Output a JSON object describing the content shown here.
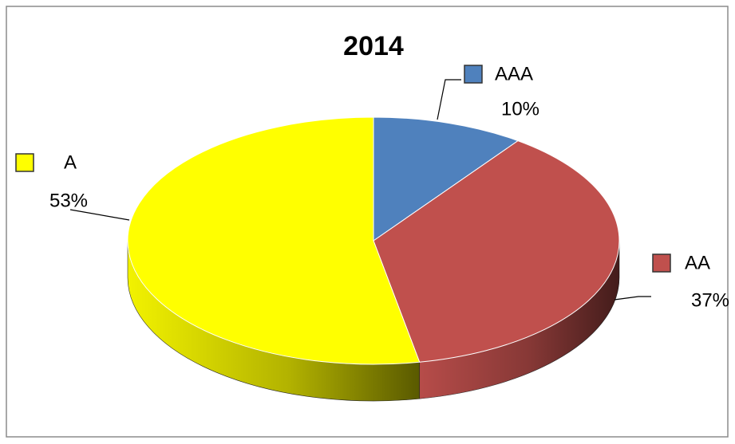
{
  "chart_data": {
    "type": "pie",
    "title": "2014",
    "categories": [
      "AAA",
      "AA",
      "A"
    ],
    "values": [
      10,
      37,
      53
    ],
    "value_labels": [
      "10%",
      "37%",
      "53%"
    ],
    "colors": [
      "#4f81bd",
      "#c0504d",
      "#ffff00"
    ]
  }
}
